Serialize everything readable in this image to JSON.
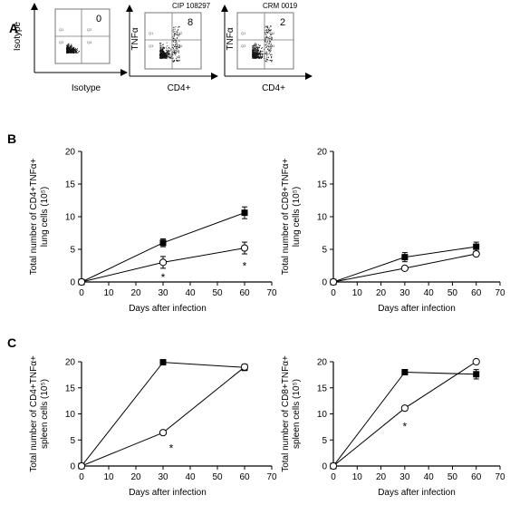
{
  "panel_letters": [
    "A",
    "B",
    "C"
  ],
  "flow_plots": [
    {
      "title": "",
      "quadrant_value": "0",
      "x_label": "Isotype",
      "y_label": "Isotype",
      "quadrant_labels": [
        "Q1",
        "Q2",
        "Q3",
        "Q4"
      ]
    },
    {
      "title": "CIP 108297",
      "quadrant_value": "8",
      "x_label": "CD4+",
      "y_label": "TNFα",
      "quadrant_labels": [
        "Q1",
        "Q2",
        "Q3",
        "Q4"
      ]
    },
    {
      "title": "CRM 0019",
      "quadrant_value": "2",
      "x_label": "CD4+",
      "y_label": "TNFα",
      "quadrant_labels": [
        "Q1",
        "Q2",
        "Q3",
        "Q4"
      ]
    }
  ],
  "chart_data": [
    {
      "type": "line",
      "panel": "B",
      "title": "",
      "xlabel": "Days after infection",
      "ylabel": [
        "Total number of CD4+TNFα+",
        "lung cells (10⁵)"
      ],
      "xlim": [
        0,
        70
      ],
      "ylim": [
        0,
        20
      ],
      "xticks": [
        0,
        10,
        20,
        30,
        40,
        50,
        60,
        70
      ],
      "yticks": [
        0,
        5,
        10,
        15,
        20
      ],
      "series": [
        {
          "marker": "filled-square",
          "x": [
            0,
            30,
            60
          ],
          "y": [
            0,
            6.0,
            10.6
          ],
          "err": [
            0,
            0.6,
            0.9
          ]
        },
        {
          "marker": "open-circle",
          "x": [
            0,
            30,
            60
          ],
          "y": [
            0,
            3.0,
            5.2
          ],
          "err": [
            0,
            0.9,
            0.9
          ]
        }
      ],
      "annotations": [
        {
          "text": "*",
          "x": 30,
          "y": 0.8
        },
        {
          "text": "*",
          "x": 60,
          "y": 2.6
        }
      ]
    },
    {
      "type": "line",
      "panel": "B",
      "title": "",
      "xlabel": "Days after infection",
      "ylabel": [
        "Total number of CD8+TNFα+",
        "lung cells (10⁵)"
      ],
      "xlim": [
        0,
        70
      ],
      "ylim": [
        0,
        20
      ],
      "xticks": [
        0,
        10,
        20,
        30,
        40,
        50,
        60,
        70
      ],
      "yticks": [
        0,
        5,
        10,
        15,
        20
      ],
      "series": [
        {
          "marker": "filled-square",
          "x": [
            0,
            30,
            60
          ],
          "y": [
            0,
            3.8,
            5.4
          ],
          "err": [
            0,
            0.7,
            0.7
          ]
        },
        {
          "marker": "open-circle",
          "x": [
            0,
            30,
            60
          ],
          "y": [
            0,
            2.1,
            4.3
          ],
          "err": [
            0,
            0.3,
            0.3
          ]
        }
      ],
      "annotations": []
    },
    {
      "type": "line",
      "panel": "C",
      "title": "",
      "xlabel": "Days after infection",
      "ylabel": [
        "Total number of CD4+TNFα+",
        "spleen cells (10⁵)"
      ],
      "xlim": [
        0,
        70
      ],
      "ylim": [
        0,
        20
      ],
      "xticks": [
        0,
        10,
        20,
        30,
        40,
        50,
        60,
        70
      ],
      "yticks": [
        0,
        5,
        10,
        15,
        20
      ],
      "series": [
        {
          "marker": "filled-square",
          "x": [
            0,
            30,
            60
          ],
          "y": [
            0,
            19.9,
            18.9
          ],
          "err": [
            0,
            0.3,
            0.6
          ]
        },
        {
          "marker": "open-circle",
          "x": [
            0,
            30,
            60
          ],
          "y": [
            0,
            6.4,
            19.0
          ],
          "err": [
            0,
            0.2,
            0.4
          ]
        }
      ],
      "annotations": [
        {
          "text": "*",
          "x": 33,
          "y": 3.6
        }
      ]
    },
    {
      "type": "line",
      "panel": "C",
      "title": "",
      "xlabel": "Days after infection",
      "ylabel": [
        "Total number of CD8+TNFα+",
        "spleen cells (10⁵)"
      ],
      "xlim": [
        0,
        70
      ],
      "ylim": [
        0,
        20
      ],
      "xticks": [
        0,
        10,
        20,
        30,
        40,
        50,
        60,
        70
      ],
      "yticks": [
        0,
        5,
        10,
        15,
        20
      ],
      "series": [
        {
          "marker": "filled-square",
          "x": [
            0,
            30,
            60
          ],
          "y": [
            0,
            18.0,
            17.6
          ],
          "err": [
            0,
            0.5,
            0.9
          ]
        },
        {
          "marker": "open-circle",
          "x": [
            0,
            30,
            60
          ],
          "y": [
            0,
            11.1,
            20.0
          ],
          "err": [
            0,
            0.3,
            0.2
          ]
        }
      ],
      "annotations": [
        {
          "text": "*",
          "x": 30,
          "y": 7.7
        }
      ]
    }
  ]
}
